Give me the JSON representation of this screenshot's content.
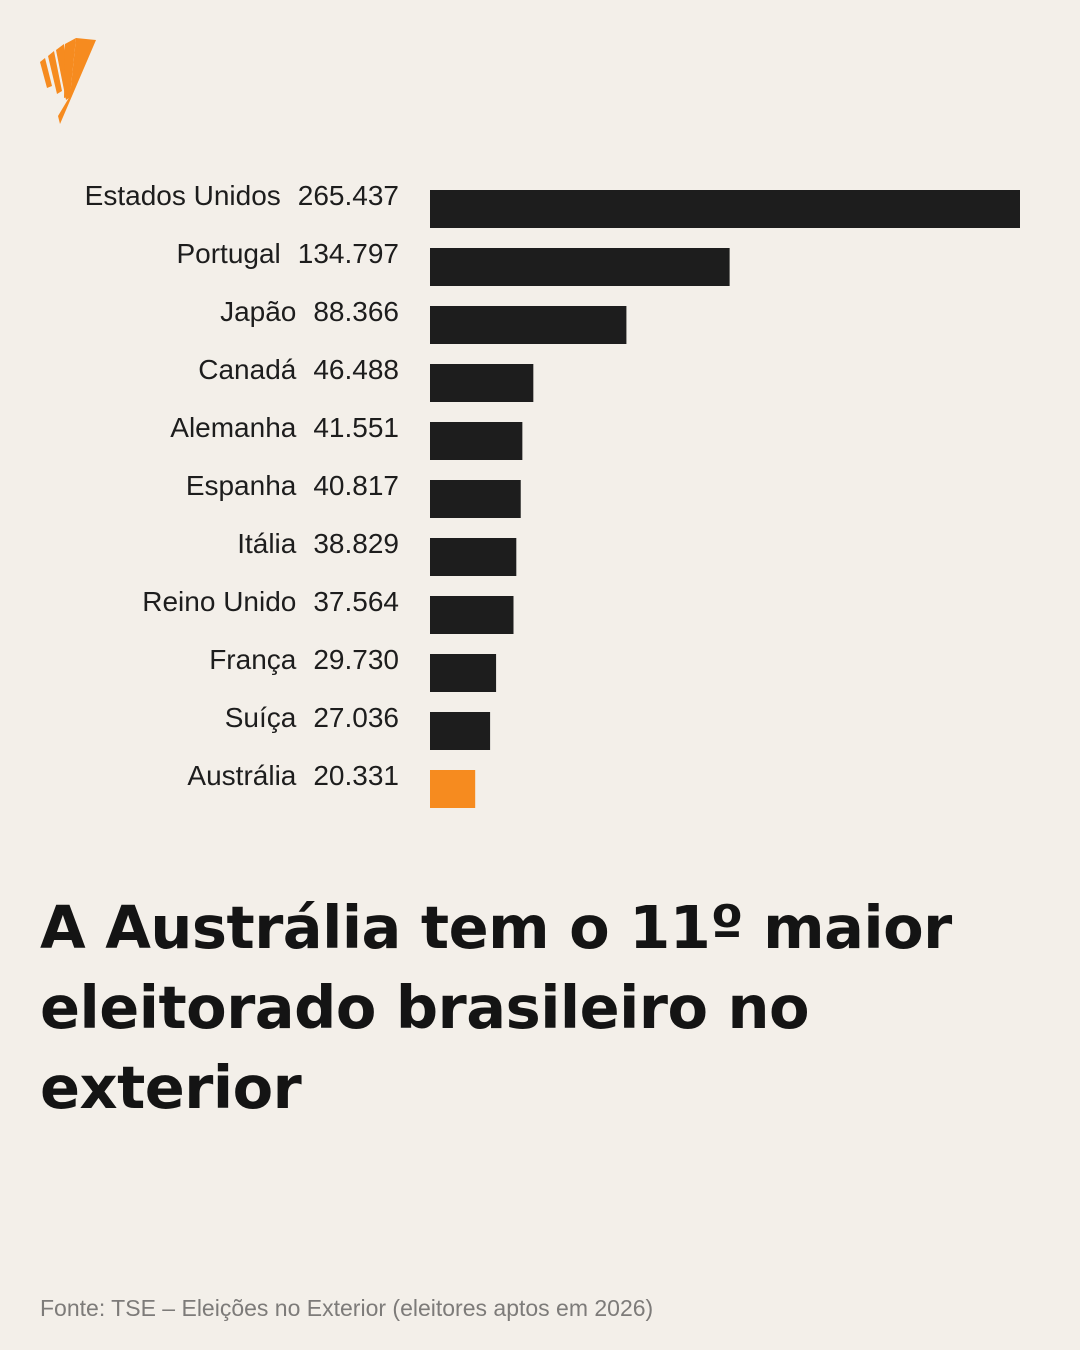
{
  "logo": {
    "name": "sbs-logo",
    "color": "#f68b1f"
  },
  "headline": "A Austrália tem o 11º maior eleitorado brasileiro no exterior",
  "source": "Fonte: TSE – Eleições no Exterior (eleitores aptos em 2026)",
  "colors": {
    "bar": "#1d1d1d",
    "highlight": "#f68b1f",
    "background": "#f3efe9"
  },
  "chart_data": {
    "type": "bar",
    "orientation": "horizontal",
    "categories": [
      "Estados Unidos",
      "Portugal",
      "Japão",
      "Canadá",
      "Alemanha",
      "Espanha",
      "Itália",
      "Reino Unido",
      "França",
      "Suíça",
      "Austrália"
    ],
    "values": [
      265437,
      134797,
      88366,
      46488,
      41551,
      40817,
      38829,
      37564,
      29730,
      27036,
      20331
    ],
    "value_labels": [
      "265.437",
      "134.797",
      "88.366",
      "46.488",
      "41.551",
      "40.817",
      "38.829",
      "37.564",
      "29.730",
      "27.036",
      "20.331"
    ],
    "highlight": "Austrália",
    "grid": false,
    "xlim": [
      0,
      265437
    ]
  }
}
